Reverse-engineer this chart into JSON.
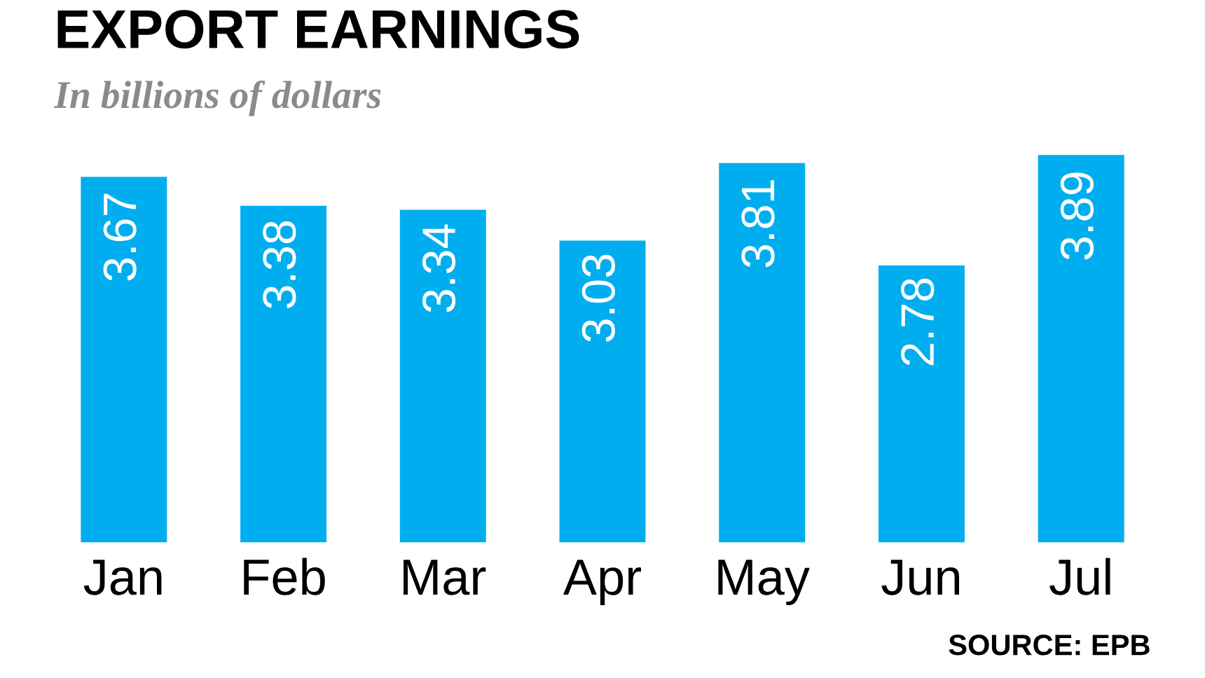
{
  "chart_data": {
    "type": "bar",
    "title": "EXPORT EARNINGS",
    "subtitle": "In billions of dollars",
    "categories": [
      "Jan",
      "Feb",
      "Mar",
      "Apr",
      "May",
      "Jun",
      "Jul"
    ],
    "values": [
      3.67,
      3.38,
      3.34,
      3.03,
      3.81,
      2.78,
      3.89
    ],
    "color": "#00aeef",
    "data_labels": true,
    "grid": false,
    "legend": false,
    "annotations": [
      "SOURCE: EPB"
    ]
  }
}
